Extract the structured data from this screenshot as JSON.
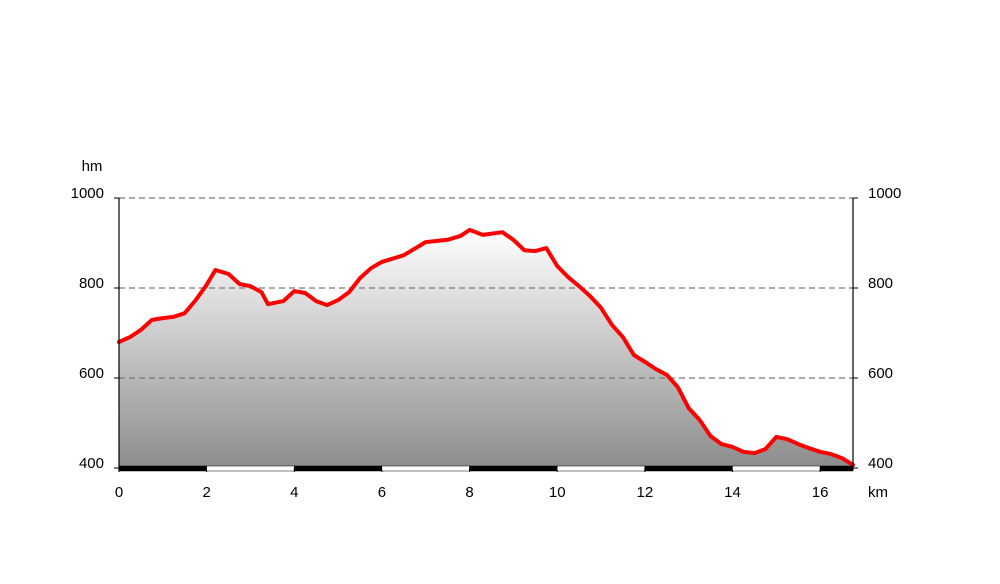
{
  "chart_data": {
    "type": "area-line",
    "y_label": "hm",
    "x_label": "km",
    "x": [
      0,
      0.25,
      0.5,
      0.75,
      1.0,
      1.25,
      1.5,
      1.75,
      2.0,
      2.2,
      2.5,
      2.75,
      3.0,
      3.25,
      3.4,
      3.75,
      4.0,
      4.25,
      4.5,
      4.75,
      5.0,
      5.25,
      5.5,
      5.75,
      6.0,
      6.5,
      7.0,
      7.5,
      7.8,
      8.0,
      8.3,
      8.75,
      9.0,
      9.25,
      9.5,
      9.75,
      10.0,
      10.25,
      10.5,
      10.75,
      11.0,
      11.25,
      11.5,
      11.75,
      12.0,
      12.25,
      12.5,
      12.75,
      13.0,
      13.25,
      13.5,
      13.75,
      14.0,
      14.25,
      14.5,
      14.75,
      15.0,
      15.25,
      15.5,
      15.75,
      16.0,
      16.25,
      16.5,
      16.75
    ],
    "series": [
      {
        "color": "#ff0000",
        "values": [
          680,
          691,
          707,
          729,
          733,
          736,
          744,
          773,
          807,
          840,
          831,
          809,
          804,
          791,
          764,
          771,
          793,
          789,
          771,
          762,
          773,
          791,
          822,
          844,
          858,
          873,
          902,
          907,
          916,
          929,
          918,
          924,
          907,
          884,
          882,
          889,
          849,
          824,
          804,
          782,
          756,
          718,
          691,
          651,
          636,
          620,
          607,
          580,
          533,
          507,
          471,
          453,
          447,
          436,
          433,
          442,
          469,
          464,
          453,
          444,
          436,
          431,
          422,
          407
        ]
      }
    ],
    "xlim": [
      0,
      16.75
    ],
    "xticks": [
      0,
      2,
      4,
      6,
      8,
      10,
      12,
      14,
      16
    ],
    "ylim": [
      400,
      1000
    ],
    "yticks": [
      400,
      600,
      800,
      1000
    ],
    "grid": true
  }
}
